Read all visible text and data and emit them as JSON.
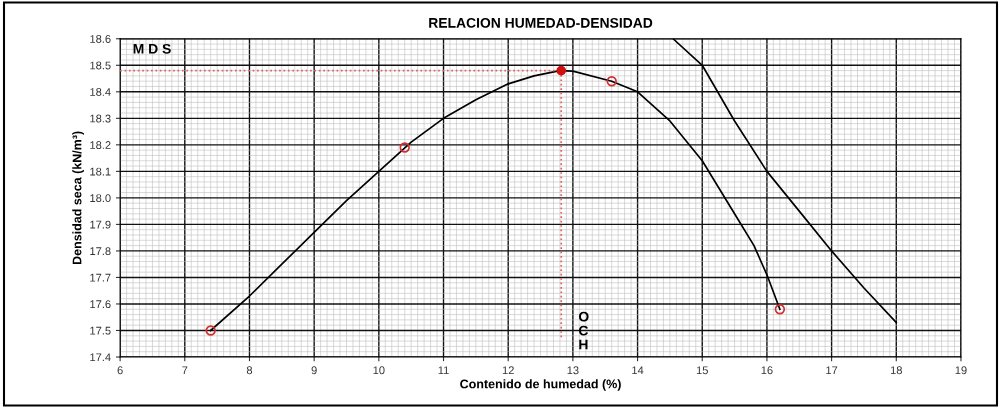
{
  "chart_data": {
    "type": "line",
    "title": "RELACION HUMEDAD-DENSIDAD",
    "xlabel": "Contenido de humedad (%)",
    "ylabel": "Densidad seca (kN/m³)",
    "xlim": [
      6,
      19
    ],
    "ylim": [
      17.4,
      18.6
    ],
    "xticks": [
      6,
      7,
      8,
      9,
      10,
      11,
      12,
      13,
      14,
      15,
      16,
      17,
      18,
      19
    ],
    "yticks": [
      17.4,
      17.5,
      17.6,
      17.7,
      17.8,
      17.9,
      {
        "value": 18.0,
        "label": "18.0"
      },
      18.1,
      18.2,
      18.3,
      18.4,
      18.5,
      18.6
    ],
    "grid": true,
    "legend": false,
    "series": [
      {
        "color": "#000000",
        "marker": "none",
        "line_style": "solid",
        "x": [
          7.4,
          8,
          8.5,
          9,
          9.5,
          10,
          10.5,
          11,
          11.5,
          12,
          12.4,
          12.8,
          13,
          13.6,
          14,
          14.5,
          15,
          15.5,
          15.8,
          16,
          16.2
        ],
        "values": [
          17.5,
          17.63,
          17.75,
          17.87,
          17.99,
          18.1,
          18.21,
          18.3,
          18.37,
          18.43,
          18.46,
          18.48,
          18.478,
          18.44,
          18.4,
          18.29,
          18.14,
          17.94,
          17.82,
          17.71,
          17.58
        ]
      },
      {
        "color": "#000000",
        "marker": "none",
        "line_style": "solid",
        "x": [
          14.55,
          15,
          15.5,
          16,
          16.5,
          17,
          17.5,
          18
        ],
        "values": [
          18.6,
          18.5,
          18.29,
          18.1,
          17.95,
          17.8,
          17.66,
          17.53
        ]
      },
      {
        "color": "#e06060",
        "marker": "none",
        "line_style": "dotted",
        "x": [
          6,
          12.82
        ],
        "values": [
          18.48,
          18.48
        ]
      },
      {
        "color": "#e06060",
        "marker": "none",
        "line_style": "dotted",
        "x": [
          12.82,
          12.82
        ],
        "values": [
          18.48,
          17.47
        ]
      },
      {
        "type": "scatter",
        "color": "#d03030",
        "marker": "circle",
        "x": [
          7.4,
          10.4,
          13.6,
          16.2
        ],
        "values": [
          17.5,
          18.19,
          18.44,
          17.58
        ]
      },
      {
        "color": "#d01010",
        "marker": "circle",
        "x": [
          12.82
        ],
        "values": [
          18.48
        ]
      }
    ],
    "annotations": [
      "M D S",
      "O\nC\nH"
    ]
  }
}
